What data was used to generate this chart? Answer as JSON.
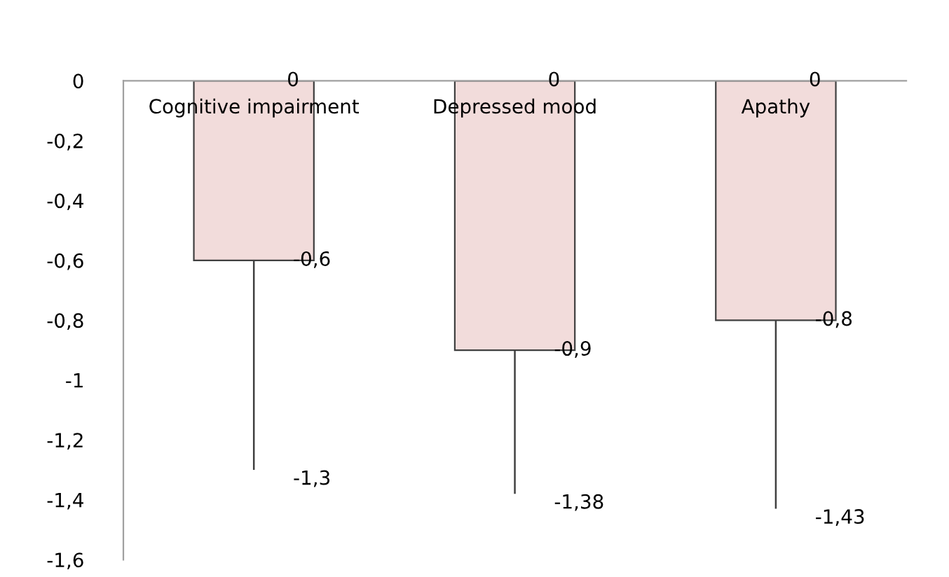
{
  "chart_data": {
    "type": "bar",
    "categories": [
      "Cognitive impairment",
      "Depressed mood",
      "Apathy"
    ],
    "values": [
      -0.6,
      -0.9,
      -0.8
    ],
    "color": "#f2dcdb",
    "value_labels": [
      "-0,6",
      "-0,9",
      "-0,8"
    ],
    "errors": [
      [
        -1.3,
        -0.6
      ],
      [
        -1.38,
        -0.9
      ],
      [
        -1.43,
        -0.8
      ]
    ],
    "annotations": [
      {
        "text": "0",
        "x": "Cognitive impairment",
        "y": 0
      },
      {
        "text": "0",
        "x": "Depressed mood",
        "y": 0
      },
      {
        "text": "0",
        "x": "Apathy",
        "y": 0
      },
      {
        "text": "-1,3",
        "x": "Cognitive impairment",
        "y": -1.3
      },
      {
        "text": "-1,38",
        "x": "Depressed mood",
        "y": -1.38
      },
      {
        "text": "-1,43",
        "x": "Apathy",
        "y": -1.43
      }
    ],
    "ylim": [
      -1.6,
      0
    ],
    "yticks": [
      {
        "value": 0,
        "label": "0"
      },
      {
        "value": -0.2,
        "label": "-0,2"
      },
      {
        "value": -0.4,
        "label": "-0,4"
      },
      {
        "value": -0.6,
        "label": "-0,6"
      },
      {
        "value": -0.8,
        "label": "-0,8"
      },
      {
        "value": -1,
        "label": "-1"
      },
      {
        "value": -1.2,
        "label": "-1,2"
      },
      {
        "value": -1.4,
        "label": "-1,4"
      },
      {
        "value": -1.6,
        "label": "-1,6"
      }
    ],
    "grid": false,
    "legend": false
  }
}
